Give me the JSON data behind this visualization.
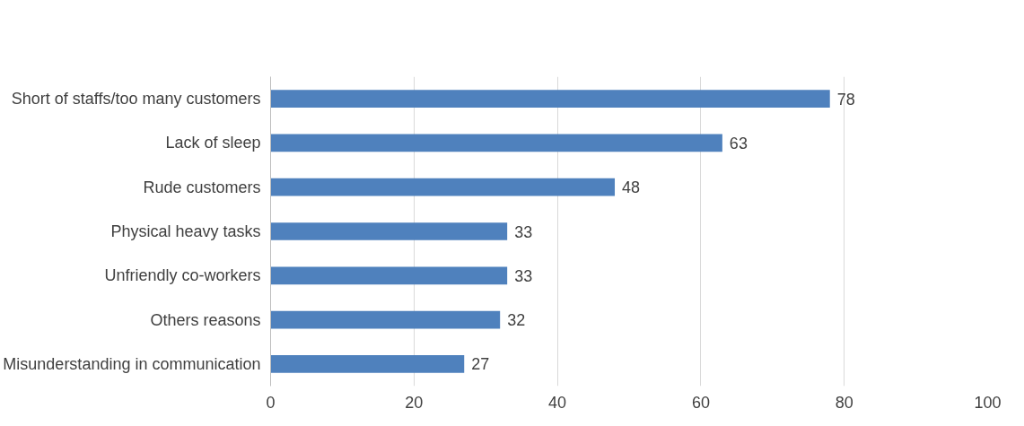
{
  "chart_data": {
    "type": "bar",
    "orientation": "horizontal",
    "categories": [
      "Short of staffs/too many customers",
      "Lack of sleep",
      "Rude customers",
      "Physical heavy tasks",
      "Unfriendly co-workers",
      "Others reasons",
      "Misunderstanding in communication"
    ],
    "values": [
      78,
      63,
      48,
      33,
      33,
      32,
      27
    ],
    "color": "#4f81bd",
    "xlim": [
      0,
      100
    ],
    "xticks": [
      0,
      20,
      40,
      60,
      80,
      100
    ],
    "grid": "x",
    "data_labels": true
  }
}
